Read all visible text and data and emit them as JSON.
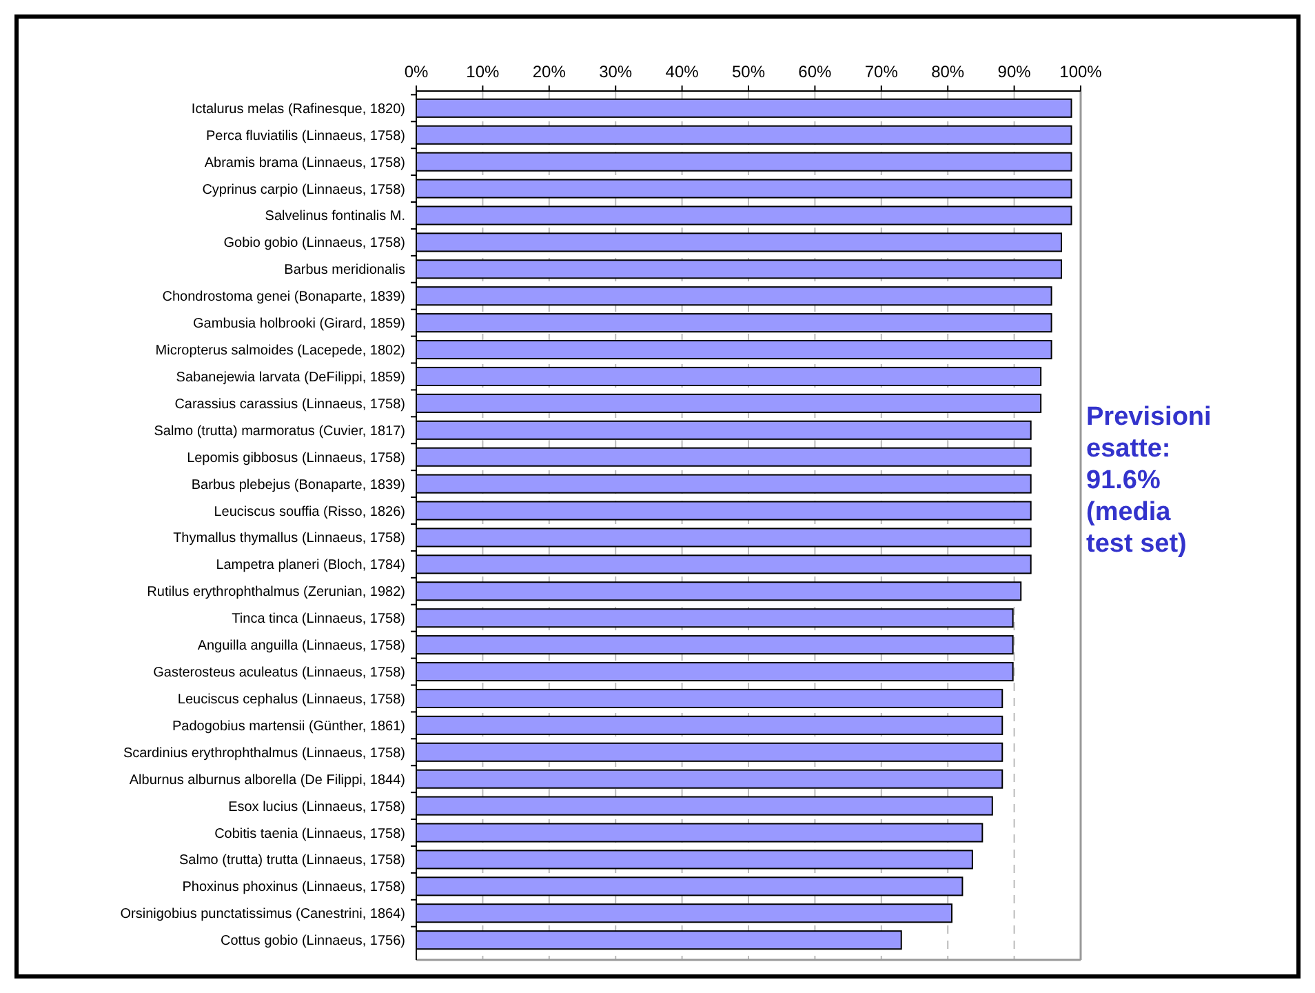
{
  "chart_data": {
    "type": "bar",
    "orientation": "horizontal",
    "categories": [
      "Ictalurus melas (Rafinesque, 1820)",
      "Perca fluviatilis (Linnaeus, 1758)",
      "Abramis brama (Linnaeus, 1758)",
      "Cyprinus carpio (Linnaeus, 1758)",
      "Salvelinus fontinalis M.",
      "Gobio gobio (Linnaeus, 1758)",
      "Barbus meridionalis",
      "Chondrostoma genei (Bonaparte, 1839)",
      "Gambusia holbrooki (Girard, 1859)",
      "Micropterus salmoides (Lacepede, 1802)",
      "Sabanejewia larvata (DeFilippi, 1859)",
      "Carassius carassius (Linnaeus, 1758)",
      "Salmo (trutta) marmoratus (Cuvier, 1817)",
      "Lepomis gibbosus (Linnaeus, 1758)",
      "Barbus plebejus (Bonaparte, 1839)",
      "Leuciscus souffia (Risso, 1826)",
      "Thymallus thymallus (Linnaeus, 1758)",
      "Lampetra planeri (Bloch, 1784)",
      "Rutilus erythrophthalmus (Zerunian, 1982)",
      "Tinca tinca (Linnaeus, 1758)",
      "Anguilla anguilla (Linnaeus, 1758)",
      "Gasterosteus aculeatus (Linnaeus, 1758)",
      "Leuciscus cephalus (Linnaeus, 1758)",
      "Padogobius martensii (Günther, 1861)",
      "Scardinius erythrophthalmus (Linnaeus, 1758)",
      "Alburnus alburnus alborella (De Filippi, 1844)",
      "Esox lucius (Linnaeus, 1758)",
      "Cobitis taenia (Linnaeus, 1758)",
      "Salmo (trutta) trutta (Linnaeus, 1758)",
      "Phoxinus phoxinus (Linnaeus, 1758)",
      "Orsinigobius punctatissimus (Canestrini, 1864)",
      "Cottus gobio (Linnaeus, 1756)"
    ],
    "values": [
      98.6,
      98.6,
      98.6,
      98.6,
      98.6,
      97.1,
      97.1,
      95.6,
      95.6,
      95.6,
      94.0,
      94.0,
      92.5,
      92.5,
      92.5,
      92.5,
      92.5,
      92.5,
      91.0,
      89.8,
      89.8,
      89.8,
      88.2,
      88.2,
      88.2,
      88.2,
      86.7,
      85.2,
      83.7,
      82.2,
      80.6,
      73.0
    ],
    "color": "#9999ff",
    "xlim": [
      0,
      100
    ],
    "xticks": [
      {
        "value": 0,
        "label": "0%"
      },
      {
        "value": 10,
        "label": "10%"
      },
      {
        "value": 20,
        "label": "20%"
      },
      {
        "value": 30,
        "label": "30%"
      },
      {
        "value": 40,
        "label": "40%"
      },
      {
        "value": 50,
        "label": "50%"
      },
      {
        "value": 60,
        "label": "60%"
      },
      {
        "value": 70,
        "label": "70%"
      },
      {
        "value": 80,
        "label": "80%"
      },
      {
        "value": 90,
        "label": "90%"
      },
      {
        "value": 100,
        "label": "100%"
      }
    ],
    "grid": "x",
    "annotations": [
      "Previsioni esatte: 91.6% (media test set)"
    ]
  }
}
